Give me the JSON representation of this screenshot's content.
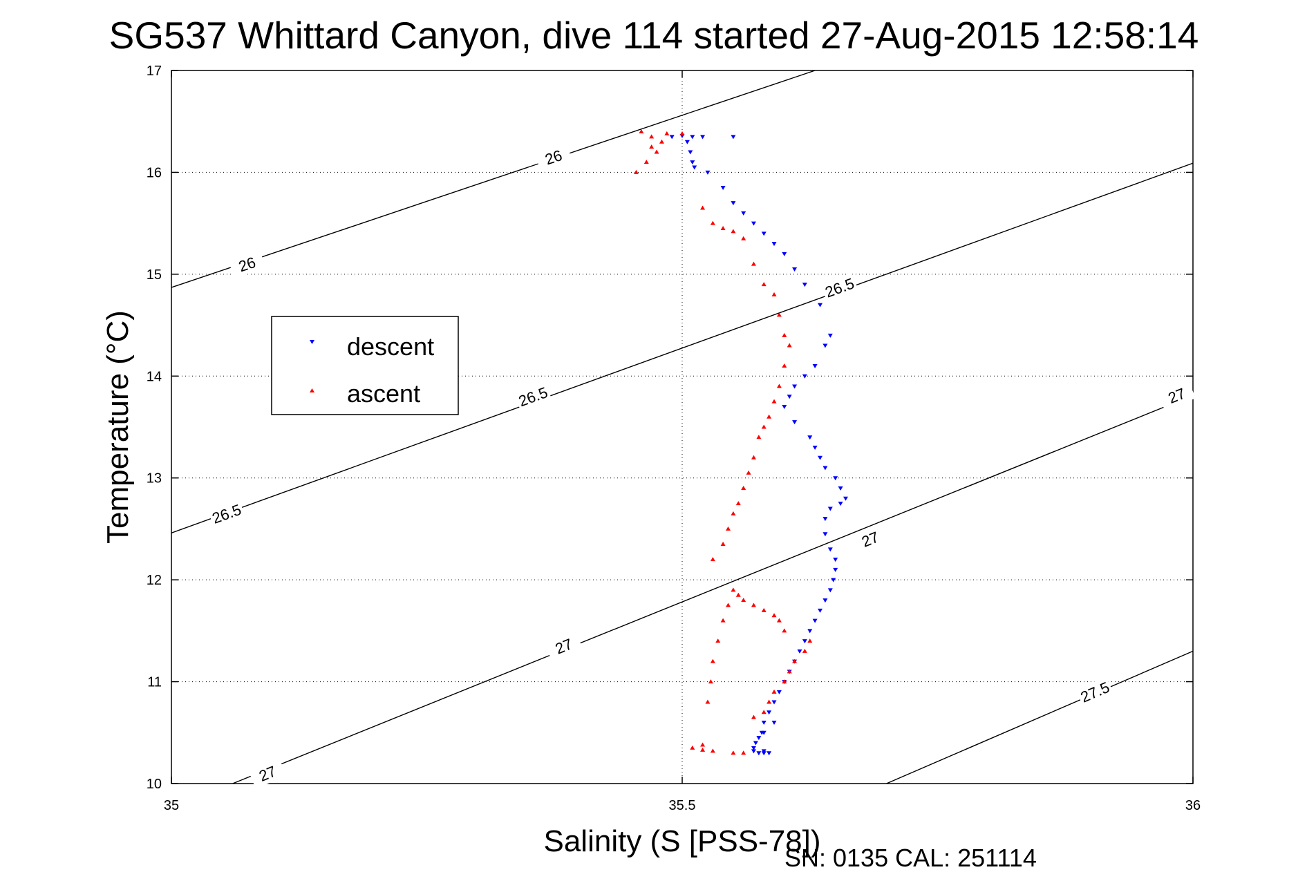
{
  "chart_data": {
    "type": "scatter",
    "title": "SG537 Whittard Canyon, dive 114 started 27-Aug-2015 12:58:14",
    "xlabel": "Salinity (S [PSS-78])",
    "ylabel": "Temperature (°C)",
    "xlim": [
      35,
      36
    ],
    "ylim": [
      10,
      17
    ],
    "x_ticks": [
      "35",
      "35.5",
      "36"
    ],
    "y_ticks": [
      "10",
      "11",
      "12",
      "13",
      "14",
      "15",
      "16",
      "17"
    ],
    "grid": true,
    "legend_placement": "left",
    "footer": "SN: 0135  CAL: 251114",
    "colors": {
      "descent": "#0000ff",
      "ascent": "#ff0000"
    },
    "contours": [
      {
        "label": "26",
        "points": [
          [
            35.0,
            14.87
          ],
          [
            35.63,
            17.0
          ]
        ],
        "label_positions": [
          [
            35.074,
            15.1
          ],
          [
            35.374,
            16.15
          ]
        ]
      },
      {
        "label": "26.5",
        "points": [
          [
            35.0,
            12.46
          ],
          [
            36.0,
            16.09
          ]
        ],
        "label_positions": [
          [
            35.054,
            12.65
          ],
          [
            35.354,
            13.8
          ],
          [
            35.654,
            14.87
          ]
        ]
      },
      {
        "label": "27",
        "points": [
          [
            35.06,
            10.0
          ],
          [
            36.0,
            13.81
          ]
        ],
        "label_positions": [
          [
            35.094,
            10.1
          ],
          [
            35.384,
            11.35
          ],
          [
            35.684,
            12.4
          ],
          [
            35.984,
            13.81
          ]
        ]
      },
      {
        "label": "27.5",
        "points": [
          [
            35.7,
            10.0
          ],
          [
            36.0,
            11.3
          ]
        ],
        "label_positions": [
          [
            35.904,
            10.9
          ]
        ]
      }
    ],
    "series": [
      {
        "name": "descent",
        "x": [
          35.49,
          35.5,
          35.51,
          35.52,
          35.55,
          35.505,
          35.508,
          35.51,
          35.512,
          35.525,
          35.54,
          35.55,
          35.56,
          35.57,
          35.58,
          35.59,
          35.6,
          35.61,
          35.62,
          35.635,
          35.645,
          35.64,
          35.63,
          35.62,
          35.61,
          35.605,
          35.6,
          35.61,
          35.625,
          35.63,
          35.635,
          35.64,
          35.65,
          35.655,
          35.66,
          35.655,
          35.645,
          35.64,
          35.64,
          35.645,
          35.65,
          35.65,
          35.648,
          35.645,
          35.64,
          35.635,
          35.63,
          35.625,
          35.62,
          35.615,
          35.61,
          35.605,
          35.6,
          35.595,
          35.59,
          35.585,
          35.58,
          35.578,
          35.575,
          35.57,
          35.58,
          35.585,
          35.58,
          35.575,
          35.57,
          35.572,
          35.58,
          35.59
        ],
        "y": [
          16.35,
          16.36,
          16.35,
          16.35,
          16.35,
          16.3,
          16.2,
          16.1,
          16.05,
          16.0,
          15.85,
          15.7,
          15.6,
          15.5,
          15.4,
          15.3,
          15.2,
          15.05,
          14.9,
          14.7,
          14.4,
          14.3,
          14.1,
          14.0,
          13.9,
          13.8,
          13.7,
          13.55,
          13.4,
          13.3,
          13.2,
          13.1,
          13.0,
          12.9,
          12.8,
          12.75,
          12.7,
          12.6,
          12.45,
          12.3,
          12.2,
          12.1,
          12.0,
          11.9,
          11.8,
          11.7,
          11.6,
          11.5,
          11.4,
          11.3,
          11.2,
          11.1,
          11.0,
          10.9,
          10.8,
          10.7,
          10.6,
          10.5,
          10.45,
          10.35,
          10.32,
          10.3,
          10.3,
          10.3,
          10.32,
          10.4,
          10.5,
          10.6
        ]
      },
      {
        "name": "ascent",
        "x": [
          35.46,
          35.47,
          35.48,
          35.475,
          35.465,
          35.455,
          35.47,
          35.485,
          35.5,
          35.52,
          35.53,
          35.54,
          35.55,
          35.56,
          35.57,
          35.58,
          35.59,
          35.595,
          35.6,
          35.605,
          35.6,
          35.595,
          35.59,
          35.585,
          35.58,
          35.575,
          35.57,
          35.565,
          35.56,
          35.555,
          35.55,
          35.545,
          35.54,
          35.53,
          35.52,
          35.51,
          35.52,
          35.53,
          35.55,
          35.56,
          35.57,
          35.58,
          35.585,
          35.59,
          35.6,
          35.605,
          35.61,
          35.62,
          35.625,
          35.6,
          35.595,
          35.59,
          35.58,
          35.57,
          35.56,
          35.555,
          35.55,
          35.545,
          35.54,
          35.535,
          35.53,
          35.528,
          35.525
        ],
        "y": [
          16.4,
          16.35,
          16.3,
          16.2,
          16.1,
          16.0,
          16.25,
          16.38,
          16.38,
          15.65,
          15.5,
          15.45,
          15.42,
          15.35,
          15.1,
          14.9,
          14.8,
          14.6,
          14.4,
          14.3,
          14.1,
          13.9,
          13.75,
          13.6,
          13.5,
          13.4,
          13.2,
          13.05,
          12.9,
          12.75,
          12.65,
          12.5,
          12.35,
          12.2,
          10.38,
          10.35,
          10.33,
          10.32,
          10.3,
          10.3,
          10.65,
          10.7,
          10.8,
          10.9,
          11.0,
          11.1,
          11.2,
          11.3,
          11.4,
          11.5,
          11.6,
          11.65,
          11.7,
          11.75,
          11.8,
          11.85,
          11.9,
          11.75,
          11.6,
          11.4,
          11.2,
          11.0,
          10.8
        ]
      }
    ]
  }
}
